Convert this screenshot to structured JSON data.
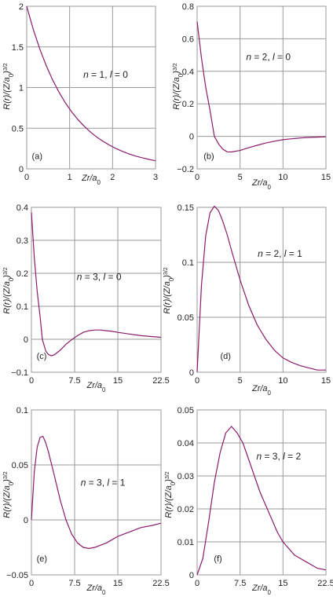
{
  "chart_data": [
    {
      "type": "line",
      "panel_label": "(a)",
      "annotation": "n = 1, l = 0",
      "xlabel": "Zr/a0",
      "ylabel": "R(r)/(Z/a0)3/2",
      "xlim": [
        0,
        3
      ],
      "ylim": [
        0,
        2
      ],
      "x_ticks": [
        0,
        1,
        2,
        3
      ],
      "x_tick_labels": [
        "0",
        "1",
        "2",
        "3"
      ],
      "y_ticks": [
        0,
        0.5,
        1,
        1.5,
        2
      ],
      "y_tick_labels": [
        "0",
        "0.5",
        "1",
        "1.5",
        "2"
      ],
      "grid": true,
      "series": [
        {
          "x": [
            0,
            0.15,
            0.3,
            0.45,
            0.6,
            0.75,
            0.9,
            1.05,
            1.2,
            1.35,
            1.5,
            1.65,
            1.8,
            1.95,
            2.1,
            2.25,
            2.4,
            2.55,
            2.7,
            2.85,
            3
          ],
          "values": [
            2.0,
            1.721,
            1.482,
            1.275,
            1.098,
            0.945,
            0.813,
            0.7,
            0.602,
            0.519,
            0.446,
            0.384,
            0.331,
            0.285,
            0.245,
            0.211,
            0.181,
            0.156,
            0.134,
            0.116,
            0.1
          ]
        }
      ]
    },
    {
      "type": "line",
      "panel_label": "(b)",
      "annotation": "n = 2, l = 0",
      "xlabel": "Zr/a0",
      "ylabel": "R(r)/(Z/a0)3/2",
      "xlim": [
        0,
        15
      ],
      "ylim": [
        -0.2,
        0.8
      ],
      "x_ticks": [
        0,
        5,
        10,
        15
      ],
      "x_tick_labels": [
        "0",
        "5",
        "10",
        "15"
      ],
      "y_ticks": [
        -0.2,
        0,
        0.2,
        0.4,
        0.6,
        0.8
      ],
      "y_tick_labels": [
        "−0.2",
        "0",
        "0.2",
        "0.4",
        "0.6",
        "0.8"
      ],
      "grid": true,
      "series": [
        {
          "x": [
            0,
            0.5,
            1,
            1.5,
            2,
            2.5,
            3,
            3.5,
            4,
            5,
            6,
            7,
            8,
            9,
            10,
            11,
            12,
            13,
            14,
            15
          ],
          "values": [
            0.707,
            0.482,
            0.303,
            0.16,
            0.0,
            -0.047,
            -0.08,
            -0.095,
            -0.096,
            -0.087,
            -0.07,
            -0.055,
            -0.041,
            -0.03,
            -0.021,
            -0.015,
            -0.01,
            -0.007,
            -0.005,
            -0.003
          ]
        }
      ]
    },
    {
      "type": "line",
      "panel_label": "(c)",
      "annotation": "n = 3, l = 0",
      "xlabel": "Zr/a0",
      "ylabel": "R(r)/(Z/a0)3/2",
      "xlim": [
        0,
        22.5
      ],
      "ylim": [
        -0.1,
        0.4
      ],
      "x_ticks": [
        0,
        7.5,
        15,
        22.5
      ],
      "x_tick_labels": [
        "0",
        "7.5",
        "15",
        "22.5"
      ],
      "y_ticks": [
        -0.1,
        0,
        0.1,
        0.2,
        0.3,
        0.4
      ],
      "y_tick_labels": [
        "−0.1",
        "0",
        "0.1",
        "0.2",
        "0.3",
        "0.4"
      ],
      "grid": true,
      "series": [
        {
          "x": [
            0,
            0.5,
            1,
            1.5,
            1.9,
            2.5,
            3,
            3.5,
            4,
            5,
            6,
            7.1,
            8,
            9,
            10,
            11,
            12,
            13,
            14,
            15,
            17,
            19,
            21,
            22.5
          ],
          "values": [
            0.385,
            0.247,
            0.146,
            0.07,
            0.0,
            -0.036,
            -0.047,
            -0.05,
            -0.047,
            -0.033,
            -0.015,
            0.0,
            0.011,
            0.021,
            0.026,
            0.028,
            0.028,
            0.026,
            0.024,
            0.021,
            0.016,
            0.011,
            0.008,
            0.006
          ]
        }
      ]
    },
    {
      "type": "line",
      "panel_label": "(d)",
      "annotation": "n = 2, l = 1",
      "xlabel": "Zr/a0",
      "ylabel": "R(r)/(Z/a0)3/2",
      "xlim": [
        0,
        15
      ],
      "ylim": [
        0,
        0.15
      ],
      "x_ticks": [
        0,
        5,
        10,
        15
      ],
      "x_tick_labels": [
        "0",
        "5",
        "10",
        "15"
      ],
      "y_ticks": [
        0,
        0.05,
        0.1,
        0.15
      ],
      "y_tick_labels": [
        "0",
        "0.05",
        "0.1",
        "0.15"
      ],
      "grid": true,
      "series": [
        {
          "x": [
            0,
            0.5,
            1,
            1.5,
            2,
            2.5,
            3,
            3.5,
            4,
            5,
            6,
            7,
            8,
            9,
            10,
            11,
            12,
            13,
            14,
            15
          ],
          "values": [
            0.0,
            0.079,
            0.124,
            0.145,
            0.151,
            0.147,
            0.137,
            0.125,
            0.111,
            0.084,
            0.061,
            0.043,
            0.03,
            0.02,
            0.013,
            0.009,
            0.006,
            0.004,
            0.002,
            0.002
          ]
        }
      ]
    },
    {
      "type": "line",
      "panel_label": "(e)",
      "annotation": "n = 3, l = 1",
      "xlabel": "Zr/a0",
      "ylabel": "R(r)/(Z/a0)3/2",
      "xlim": [
        0,
        22.5
      ],
      "ylim": [
        -0.05,
        0.1
      ],
      "x_ticks": [
        0,
        7.5,
        15,
        22.5
      ],
      "x_tick_labels": [
        "0",
        "7.5",
        "15",
        "22.5"
      ],
      "y_ticks": [
        -0.05,
        0,
        0.05,
        0.1
      ],
      "y_tick_labels": [
        "−0.05",
        "0",
        "0.05",
        "0.1"
      ],
      "grid": true,
      "series": [
        {
          "x": [
            0,
            0.5,
            1,
            1.5,
            2,
            2.5,
            3,
            4,
            5,
            6,
            7,
            8,
            9,
            10,
            11,
            12,
            13,
            14,
            15,
            16,
            17,
            18,
            19,
            20,
            21,
            22.5
          ],
          "values": [
            0.0,
            0.044,
            0.066,
            0.075,
            0.076,
            0.07,
            0.061,
            0.04,
            0.018,
            0.0,
            -0.013,
            -0.021,
            -0.025,
            -0.026,
            -0.025,
            -0.023,
            -0.021,
            -0.018,
            -0.015,
            -0.013,
            -0.011,
            -0.009,
            -0.007,
            -0.006,
            -0.005,
            -0.003
          ]
        }
      ]
    },
    {
      "type": "line",
      "panel_label": "(f)",
      "annotation": "n = 3, l = 2",
      "xlabel": "Zr/a0",
      "ylabel": "R(r)/(Z/a0)3/2",
      "xlim": [
        0,
        22.5
      ],
      "ylim": [
        0,
        0.05
      ],
      "x_ticks": [
        0,
        7.5,
        15,
        22.5
      ],
      "x_tick_labels": [
        "0",
        "7.5",
        "15",
        "22.5"
      ],
      "y_ticks": [
        0,
        0.01,
        0.02,
        0.03,
        0.04,
        0.05
      ],
      "y_tick_labels": [
        "0",
        "0.01",
        "0.02",
        "0.03",
        "0.04",
        "0.05"
      ],
      "grid": true,
      "series": [
        {
          "x": [
            0,
            1,
            2,
            3,
            4,
            5,
            6,
            7,
            8,
            9,
            10,
            11,
            12,
            13,
            14,
            15,
            16,
            17,
            18,
            19,
            20,
            21,
            22.5
          ],
          "values": [
            0.0,
            0.005,
            0.016,
            0.028,
            0.037,
            0.043,
            0.045,
            0.043,
            0.04,
            0.035,
            0.03,
            0.025,
            0.021,
            0.017,
            0.013,
            0.01,
            0.008,
            0.006,
            0.005,
            0.004,
            0.003,
            0.002,
            0.0015
          ]
        }
      ]
    }
  ],
  "colors": {
    "curve": "#8b1b6b",
    "grid": "#9a9a9a",
    "text": "#231f20"
  }
}
